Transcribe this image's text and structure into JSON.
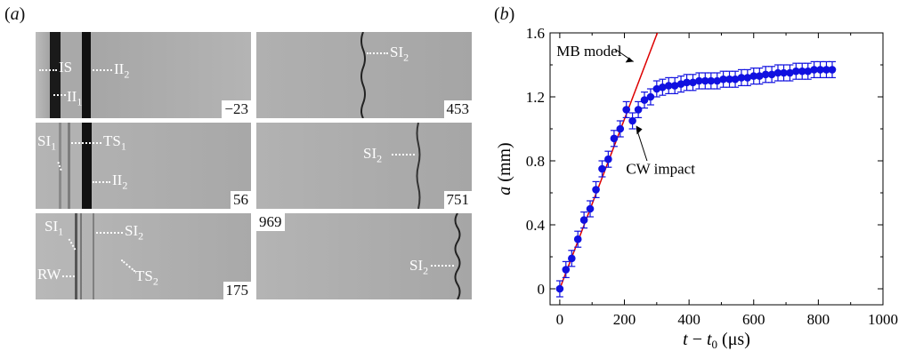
{
  "panel_a": {
    "label": "a",
    "frames": [
      {
        "time": "−23",
        "annotations": [
          [
            "IS",
            ""
          ],
          [
            "II",
            "2"
          ],
          [
            "II",
            "1"
          ]
        ]
      },
      {
        "time": "453",
        "annotations": [
          [
            "SI",
            "2"
          ]
        ]
      },
      {
        "time": "56",
        "annotations": [
          [
            "SI",
            "1"
          ],
          [
            "TS",
            "1"
          ],
          [
            "II",
            "2"
          ]
        ]
      },
      {
        "time": "751",
        "annotations": [
          [
            "SI",
            "2"
          ]
        ]
      },
      {
        "time": "175",
        "annotations": [
          [
            "SI",
            "1"
          ],
          [
            "SI",
            "2"
          ],
          [
            "RW",
            ""
          ],
          [
            "TS",
            "2"
          ]
        ]
      },
      {
        "time": "969",
        "annotations": [
          [
            "SI",
            "2"
          ]
        ]
      }
    ]
  },
  "panel_b": {
    "label": "b",
    "annotations": [
      "MB model",
      "CW impact"
    ]
  },
  "chart_data": {
    "type": "scatter",
    "xlabel": "t − t0 (μs)",
    "ylabel": "a (mm)",
    "xlim": [
      -30,
      1000
    ],
    "ylim": [
      -0.1,
      1.6
    ],
    "x_ticks": [
      0,
      200,
      400,
      600,
      800,
      1000
    ],
    "y_ticks": [
      0,
      0.4,
      0.8,
      1.2,
      1.6
    ],
    "y_tick_labels": [
      "0",
      "0.4",
      "0.8",
      "1.2",
      "1.6"
    ],
    "grid": false,
    "series": [
      {
        "marker": "filled-circle",
        "color": "#1010e0",
        "x": [
          0,
          19,
          37,
          56,
          75,
          94,
          112,
          131,
          150,
          168,
          187,
          206,
          225,
          243,
          262,
          281,
          300,
          318,
          337,
          356,
          375,
          393,
          412,
          431,
          450,
          468,
          487,
          506,
          525,
          543,
          562,
          581,
          600,
          618,
          637,
          656,
          675,
          693,
          712,
          731,
          750,
          768,
          787,
          806,
          825,
          843
        ],
        "y": [
          0.0,
          0.12,
          0.19,
          0.31,
          0.43,
          0.5,
          0.62,
          0.75,
          0.81,
          0.94,
          1.0,
          1.12,
          1.05,
          1.12,
          1.18,
          1.2,
          1.25,
          1.26,
          1.27,
          1.27,
          1.28,
          1.29,
          1.29,
          1.3,
          1.3,
          1.3,
          1.3,
          1.31,
          1.31,
          1.31,
          1.32,
          1.32,
          1.33,
          1.33,
          1.34,
          1.34,
          1.35,
          1.35,
          1.35,
          1.36,
          1.36,
          1.36,
          1.37,
          1.37,
          1.37,
          1.37
        ],
        "error": [
          0.05,
          0.05,
          0.05,
          0.05,
          0.05,
          0.05,
          0.05,
          0.05,
          0.05,
          0.05,
          0.05,
          0.05,
          0.05,
          0.05,
          0.05,
          0.05,
          0.05,
          0.05,
          0.05,
          0.05,
          0.05,
          0.05,
          0.05,
          0.05,
          0.05,
          0.05,
          0.05,
          0.05,
          0.05,
          0.05,
          0.05,
          0.05,
          0.05,
          0.05,
          0.05,
          0.05,
          0.05,
          0.05,
          0.05,
          0.05,
          0.05,
          0.05,
          0.05,
          0.05,
          0.05,
          0.05
        ]
      },
      {
        "name": "MB model",
        "type": "line",
        "color": "#dd0000",
        "x": [
          0,
          500
        ],
        "y": [
          0.0,
          2.65
        ]
      }
    ]
  }
}
